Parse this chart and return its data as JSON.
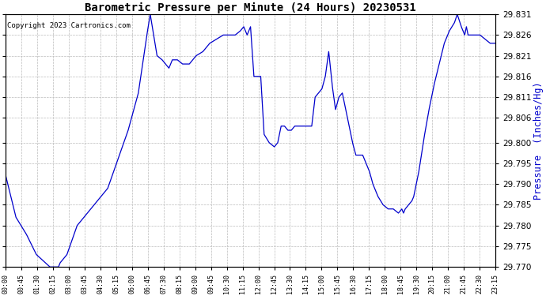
{
  "title": "Barometric Pressure per Minute (24 Hours) 20230531",
  "ylabel": "Pressure  (Inches/Hg)",
  "copyright": "Copyright 2023 Cartronics.com",
  "line_color": "#0000CC",
  "ylabel_color": "#0000CC",
  "copyright_color": "#000000",
  "background_color": "#ffffff",
  "grid_color": "#bbbbbb",
  "ylim": [
    29.77,
    29.831
  ],
  "yticks": [
    29.77,
    29.775,
    29.78,
    29.785,
    29.79,
    29.795,
    29.8,
    29.806,
    29.811,
    29.816,
    29.821,
    29.826,
    29.831
  ],
  "xtick_labels": [
    "00:00",
    "00:45",
    "01:30",
    "02:15",
    "03:00",
    "03:45",
    "04:30",
    "05:15",
    "06:00",
    "06:45",
    "07:30",
    "08:15",
    "09:00",
    "09:45",
    "10:30",
    "11:15",
    "12:00",
    "12:45",
    "13:30",
    "14:15",
    "15:00",
    "15:45",
    "16:30",
    "17:15",
    "18:00",
    "18:45",
    "19:30",
    "20:15",
    "21:00",
    "21:45",
    "22:30",
    "23:15"
  ],
  "key_points": [
    [
      0,
      29.792
    ],
    [
      30,
      29.782
    ],
    [
      60,
      29.778
    ],
    [
      90,
      29.773
    ],
    [
      130,
      29.77
    ],
    [
      155,
      29.77
    ],
    [
      160,
      29.771
    ],
    [
      180,
      29.773
    ],
    [
      210,
      29.78
    ],
    [
      240,
      29.783
    ],
    [
      270,
      29.786
    ],
    [
      300,
      29.789
    ],
    [
      330,
      29.796
    ],
    [
      360,
      29.803
    ],
    [
      390,
      29.812
    ],
    [
      415,
      29.826
    ],
    [
      425,
      29.831
    ],
    [
      445,
      29.821
    ],
    [
      460,
      29.82
    ],
    [
      480,
      29.818
    ],
    [
      490,
      29.82
    ],
    [
      505,
      29.82
    ],
    [
      520,
      29.819
    ],
    [
      540,
      29.819
    ],
    [
      560,
      29.821
    ],
    [
      580,
      29.822
    ],
    [
      600,
      29.824
    ],
    [
      620,
      29.825
    ],
    [
      640,
      29.826
    ],
    [
      660,
      29.826
    ],
    [
      675,
      29.826
    ],
    [
      690,
      29.827
    ],
    [
      700,
      29.828
    ],
    [
      710,
      29.826
    ],
    [
      715,
      29.827
    ],
    [
      720,
      29.828
    ],
    [
      730,
      29.816
    ],
    [
      740,
      29.816
    ],
    [
      750,
      29.816
    ],
    [
      760,
      29.802
    ],
    [
      775,
      29.8
    ],
    [
      790,
      29.799
    ],
    [
      800,
      29.8
    ],
    [
      810,
      29.804
    ],
    [
      820,
      29.804
    ],
    [
      830,
      29.803
    ],
    [
      840,
      29.803
    ],
    [
      850,
      29.804
    ],
    [
      860,
      29.804
    ],
    [
      870,
      29.804
    ],
    [
      880,
      29.804
    ],
    [
      900,
      29.804
    ],
    [
      910,
      29.811
    ],
    [
      920,
      29.812
    ],
    [
      930,
      29.813
    ],
    [
      940,
      29.816
    ],
    [
      950,
      29.822
    ],
    [
      960,
      29.814
    ],
    [
      970,
      29.808
    ],
    [
      980,
      29.811
    ],
    [
      990,
      29.812
    ],
    [
      1000,
      29.808
    ],
    [
      1005,
      29.806
    ],
    [
      1010,
      29.804
    ],
    [
      1020,
      29.8
    ],
    [
      1030,
      29.797
    ],
    [
      1040,
      29.797
    ],
    [
      1050,
      29.797
    ],
    [
      1055,
      29.796
    ],
    [
      1060,
      29.795
    ],
    [
      1070,
      29.793
    ],
    [
      1080,
      29.79
    ],
    [
      1095,
      29.787
    ],
    [
      1110,
      29.785
    ],
    [
      1125,
      29.784
    ],
    [
      1140,
      29.784
    ],
    [
      1155,
      29.783
    ],
    [
      1165,
      29.784
    ],
    [
      1170,
      29.783
    ],
    [
      1175,
      29.784
    ],
    [
      1185,
      29.785
    ],
    [
      1195,
      29.786
    ],
    [
      1200,
      29.787
    ],
    [
      1215,
      29.793
    ],
    [
      1230,
      29.801
    ],
    [
      1245,
      29.808
    ],
    [
      1260,
      29.814
    ],
    [
      1275,
      29.819
    ],
    [
      1290,
      29.824
    ],
    [
      1305,
      29.827
    ],
    [
      1320,
      29.829
    ],
    [
      1328,
      29.831
    ],
    [
      1340,
      29.828
    ],
    [
      1350,
      29.826
    ],
    [
      1355,
      29.828
    ],
    [
      1360,
      29.826
    ],
    [
      1370,
      29.826
    ],
    [
      1380,
      29.826
    ],
    [
      1395,
      29.826
    ],
    [
      1410,
      29.825
    ],
    [
      1425,
      29.824
    ],
    [
      1440,
      29.824
    ]
  ]
}
